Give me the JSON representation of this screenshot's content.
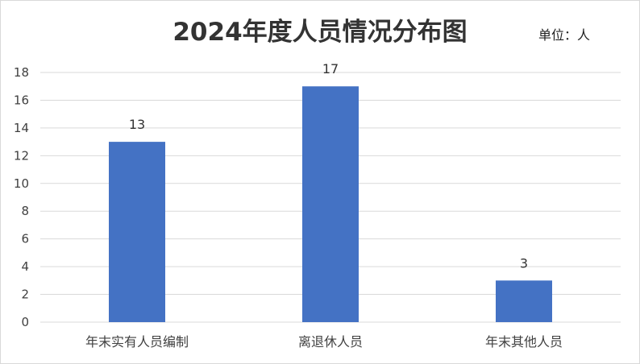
{
  "title": "2024年度人员情况分布图",
  "unit_label": "单位：人",
  "chart_data": {
    "type": "bar",
    "title": "2024年度人员情况分布图",
    "categories": [
      "年末实有人员编制",
      "离退休人员",
      "年末其他人员"
    ],
    "values": [
      13,
      17,
      3
    ],
    "data_labels": [
      "13",
      "17",
      "3"
    ],
    "ylim": [
      0,
      18
    ],
    "yticks": [
      0,
      2,
      4,
      6,
      8,
      10,
      12,
      14,
      16,
      18
    ],
    "xlabel": "",
    "ylabel": "",
    "grid": true,
    "legend": "none",
    "bar_color": "#4472C4"
  }
}
